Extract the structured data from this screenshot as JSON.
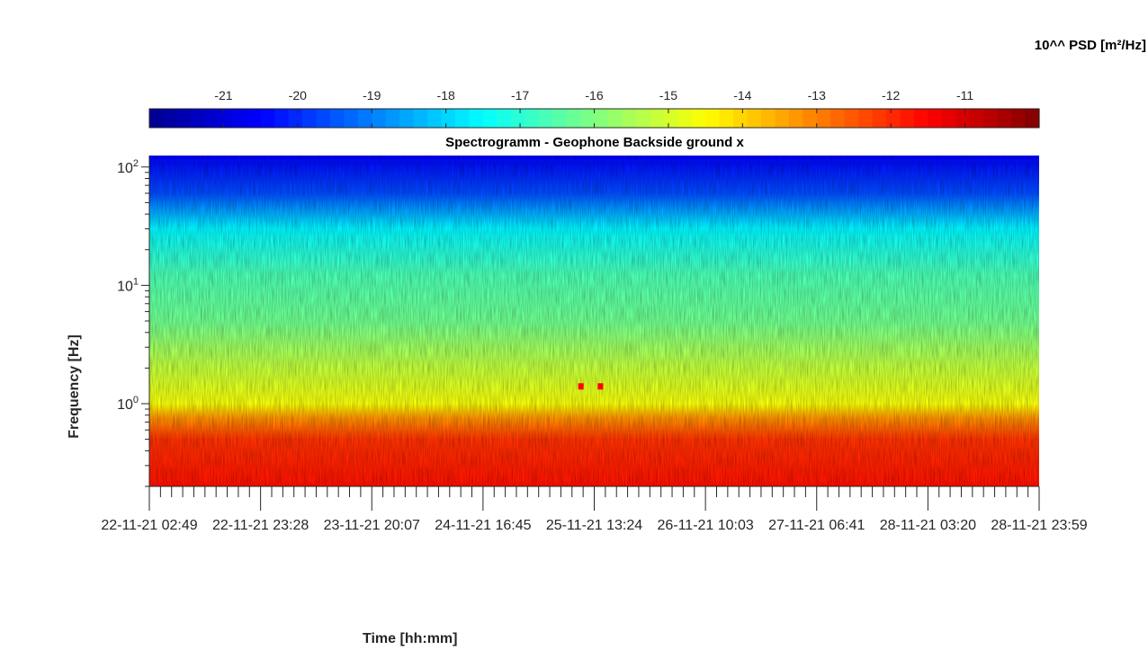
{
  "chart_data": {
    "type": "heatmap",
    "title": "Spectrogramm - Geophone Backside ground x",
    "xlabel": "Time [hh:mm]",
    "ylabel": "Frequency [Hz]",
    "colorbar": {
      "label": "10^^ PSD [m²/Hz]",
      "colormap": "jet",
      "range": [
        -22,
        -10
      ],
      "ticks": [
        -21,
        -20,
        -19,
        -18,
        -17,
        -16,
        -15,
        -14,
        -13,
        -12,
        -11
      ]
    },
    "y_scale": "log",
    "ylim": [
      0.2,
      125
    ],
    "y_ticks": [
      {
        "value": 1,
        "base": "10",
        "exp": "0"
      },
      {
        "value": 10,
        "base": "10",
        "exp": "1"
      },
      {
        "value": 100,
        "base": "10",
        "exp": "2"
      }
    ],
    "x_tick_labels": [
      "22-11-21 02:49",
      "22-11-21 23:28",
      "23-11-21 20:07",
      "24-11-21 16:45",
      "25-11-21 13:24",
      "26-11-21 10:03",
      "27-11-21 06:41",
      "28-11-21 03:20",
      "28-11-21 23:59"
    ],
    "psd_profile": [
      {
        "freq": 0.2,
        "log10_psd": -11.7
      },
      {
        "freq": 0.5,
        "log10_psd": -12.1
      },
      {
        "freq": 0.75,
        "log10_psd": -13.2
      },
      {
        "freq": 1.0,
        "log10_psd": -14.6
      },
      {
        "freq": 2.0,
        "log10_psd": -15.2
      },
      {
        "freq": 5.0,
        "log10_psd": -16.2
      },
      {
        "freq": 12.0,
        "log10_psd": -16.6
      },
      {
        "freq": 30.0,
        "log10_psd": -17.6
      },
      {
        "freq": 60.0,
        "log10_psd": -19.6
      },
      {
        "freq": 125.0,
        "log10_psd": -20.6
      }
    ],
    "features": [
      {
        "freq": 1.4,
        "log10_psd": -11.5,
        "time_fraction": 0.485
      },
      {
        "freq": 1.4,
        "log10_psd": -11.5,
        "time_fraction": 0.507
      }
    ]
  }
}
